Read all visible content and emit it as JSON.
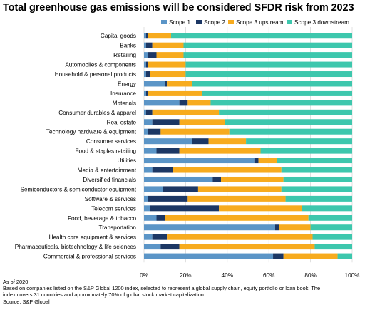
{
  "title": "Total greenhouse gas emissions will be considered SFDR risk from 2023",
  "notes": [
    "As of 2020.",
    "Based on companies listed on the S&P Global 1200 index, selected to represent a global supply chain, equity portfolio or loan book. The",
    "index covers 31 countries and approximately 70% of global stock market capitalization.",
    "Source: S&P Global"
  ],
  "colors": {
    "scope1": "#5b95c7",
    "scope2": "#1c3764",
    "scope3_upstream": "#f7ab1e",
    "scope3_downstream": "#3dc7ad",
    "grid": "#d9d9d9"
  },
  "chart_data": {
    "type": "bar",
    "orientation": "horizontal",
    "stacked": true,
    "title": "Total greenhouse gas emissions will be considered SFDR risk from 2023",
    "legend_position": "top",
    "xlim": [
      0,
      100
    ],
    "x_tick_labels": [
      "0%",
      "20%",
      "40%",
      "60%",
      "80%",
      "100%"
    ],
    "grid": true,
    "categories": [
      "Capital goods",
      "Banks",
      "Retailing",
      "Automobiles & components",
      "Household & personal products",
      "Energy",
      "Insurance",
      "Materials",
      "Consumer durables & apparel",
      "Real estate",
      "Technology hardware & equipment",
      "Consumer services",
      "Food & staples retailing",
      "Utilities",
      "Media & entertainment",
      "Diversified financials",
      "Semiconductors & semiconductor equipment",
      "Software & services",
      "Telecom services",
      "Food, beverage & tobacco",
      "Transportation",
      "Health care equipment & services",
      "Pharmaceuticals, biotechnology & life sciences",
      "Commercial  & professional services"
    ],
    "series": [
      {
        "name": "Scope 1",
        "color": "#5b95c7",
        "values": [
          1,
          1,
          2,
          1,
          1,
          10,
          1,
          17,
          1,
          4,
          2,
          23,
          6,
          53,
          4,
          33,
          9,
          2,
          3,
          6,
          63,
          4,
          8,
          62
        ]
      },
      {
        "name": "Scope 2",
        "color": "#1c3764",
        "values": [
          1,
          3,
          4,
          1,
          2,
          1,
          1,
          4,
          3,
          13,
          6,
          8,
          11,
          2,
          10,
          4,
          17,
          19,
          33,
          4,
          2,
          7,
          9,
          5
        ]
      },
      {
        "name": "Scope 3 upstream",
        "color": "#f7ab1e",
        "values": [
          11,
          15,
          13,
          18,
          17,
          12,
          26,
          11,
          32,
          22,
          33,
          18,
          39,
          9,
          52,
          30,
          40,
          47,
          40,
          69,
          15,
          70,
          65,
          26
        ]
      },
      {
        "name": "Scope 3 downstream",
        "color": "#3dc7ad",
        "values": [
          87,
          81,
          81,
          80,
          80,
          77,
          72,
          68,
          64,
          61,
          59,
          51,
          44,
          36,
          34,
          33,
          34,
          32,
          24,
          21,
          20,
          19,
          18,
          7
        ]
      }
    ]
  }
}
